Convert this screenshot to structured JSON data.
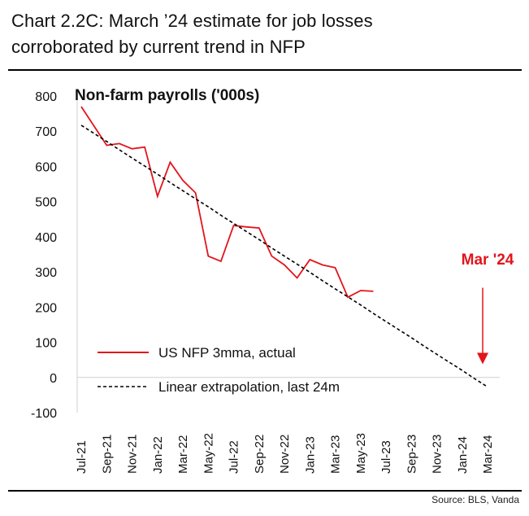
{
  "header": {
    "title_line1": "Chart 2.2C: March ’24 estimate for job losses",
    "title_line2": "corroborated by current trend in NFP"
  },
  "footer": {
    "source": "Source: BLS, Vanda"
  },
  "colors": {
    "actual": "#e3141b",
    "trend": "#000000",
    "annotation": "#e3141b"
  },
  "chart_data": {
    "type": "line",
    "title": "Non-farm payrolls ('000s)",
    "xlabel": "",
    "ylabel": "",
    "ylim": [
      -100,
      800
    ],
    "yticks": [
      -100,
      0,
      100,
      200,
      300,
      400,
      500,
      600,
      700,
      800
    ],
    "x": [
      "Jul-21",
      "Aug-21",
      "Sep-21",
      "Oct-21",
      "Nov-21",
      "Dec-21",
      "Jan-22",
      "Feb-22",
      "Mar-22",
      "Apr-22",
      "May-22",
      "Jun-22",
      "Jul-22",
      "Aug-22",
      "Sep-22",
      "Oct-22",
      "Nov-22",
      "Dec-22",
      "Jan-23",
      "Feb-23",
      "Mar-23",
      "Apr-23",
      "May-23",
      "Jun-23",
      "Jul-23",
      "Aug-23",
      "Sep-23",
      "Oct-23",
      "Nov-23",
      "Dec-23",
      "Jan-24",
      "Feb-24",
      "Mar-24"
    ],
    "x_tick_labels": [
      "Jul-21",
      "Sep-21",
      "Nov-21",
      "Jan-22",
      "Mar-22",
      "May-22",
      "Jul-22",
      "Sep-22",
      "Nov-22",
      "Jan-23",
      "Mar-23",
      "May-23",
      "Jul-23",
      "Sep-23",
      "Nov-23",
      "Jan-24",
      "Mar-24"
    ],
    "series": [
      {
        "name": "US NFP 3mma, actual",
        "style": "solid",
        "values": [
          770,
          715,
          660,
          665,
          650,
          655,
          515,
          612,
          560,
          525,
          345,
          330,
          432,
          428,
          425,
          345,
          320,
          283,
          335,
          320,
          312,
          228,
          247,
          245,
          null,
          null,
          null,
          null,
          null,
          null,
          null,
          null,
          null
        ]
      },
      {
        "name": "Linear extrapolation, last 24m",
        "style": "dashed",
        "values": [
          717,
          694,
          671,
          647,
          624,
          601,
          578,
          554,
          531,
          508,
          485,
          461,
          438,
          415,
          392,
          368,
          345,
          322,
          299,
          275,
          252,
          229,
          206,
          182,
          159,
          136,
          113,
          89,
          66,
          43,
          20,
          -4,
          -27
        ]
      }
    ],
    "annotations": [
      {
        "text": "Mar '24",
        "x": "Mar-24",
        "arrow_from": 255,
        "arrow_to": 40
      }
    ],
    "legend_position": "lower-left",
    "grid": false
  }
}
